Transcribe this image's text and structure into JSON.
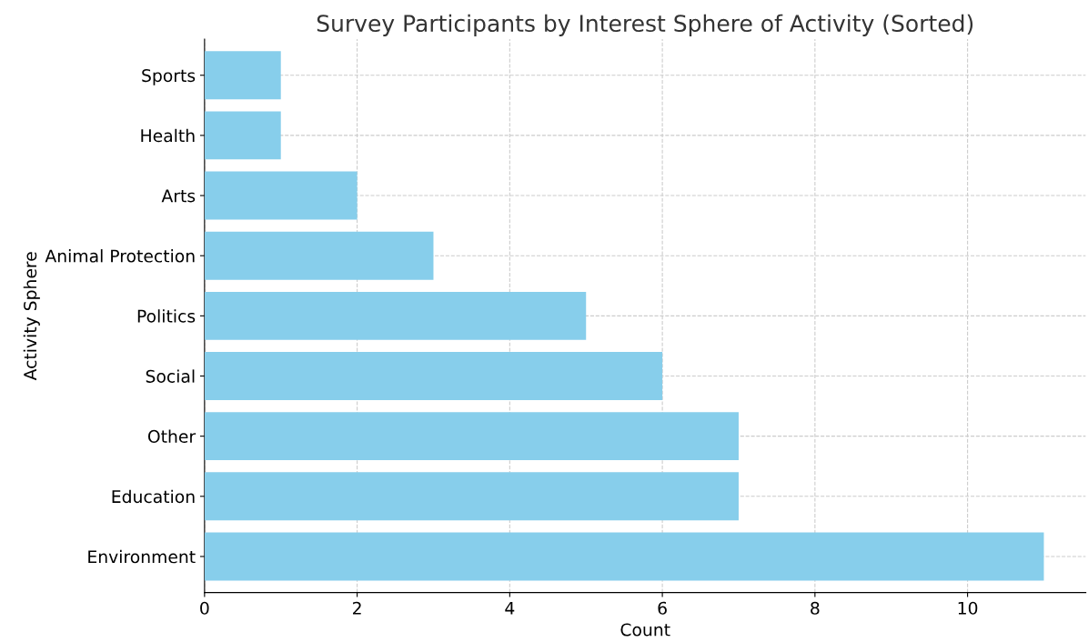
{
  "chart_data": {
    "type": "bar",
    "orientation": "horizontal",
    "title": "Survey Participants by Interest Sphere of Activity (Sorted)",
    "xlabel": "Count",
    "ylabel": "Activity Sphere",
    "categories": [
      "Sports",
      "Health",
      "Arts",
      "Animal Protection",
      "Politics",
      "Social",
      "Other",
      "Education",
      "Environment"
    ],
    "values": [
      1,
      1,
      2,
      3,
      5,
      6,
      7,
      7,
      11
    ],
    "color": "#87ceeb",
    "xlim": [
      0,
      11.55
    ],
    "xticks": [
      0,
      2,
      4,
      6,
      8,
      10
    ],
    "grid": true
  }
}
